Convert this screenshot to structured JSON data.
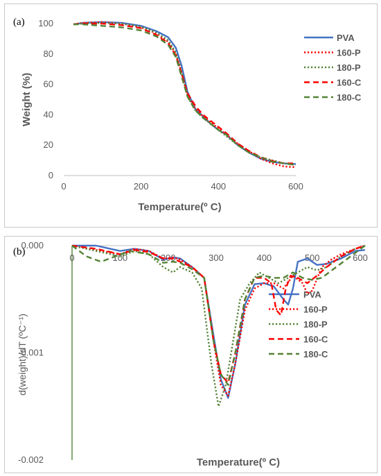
{
  "chart_data": [
    {
      "panel": "(a)",
      "type": "line",
      "xlabel": "Temperature(º C)",
      "ylabel": "Weight (%)",
      "xlim": [
        0,
        600
      ],
      "ylim": [
        0,
        100
      ],
      "xticks": [
        "0",
        "200",
        "400",
        "600"
      ],
      "yticks": [
        "0",
        "20",
        "40",
        "60",
        "80",
        "100"
      ],
      "grid": false,
      "legend_position": "right",
      "series": [
        {
          "name": "PVA",
          "color": "#4472C4",
          "dash": "solid",
          "x": [
            25,
            50,
            100,
            150,
            200,
            240,
            270,
            290,
            305,
            320,
            340,
            360,
            380,
            400,
            420,
            450,
            480,
            510,
            540,
            570,
            600
          ],
          "y": [
            99.5,
            100.5,
            101,
            100.5,
            98.5,
            95,
            91,
            84,
            72,
            55,
            44,
            39,
            34,
            30,
            27,
            20,
            15,
            11,
            9,
            8,
            7.5
          ]
        },
        {
          "name": "160-P",
          "color": "#FF0000",
          "dash": "dot",
          "x": [
            25,
            50,
            100,
            150,
            200,
            240,
            270,
            290,
            305,
            320,
            340,
            360,
            380,
            400,
            420,
            450,
            480,
            510,
            540,
            570,
            600
          ],
          "y": [
            99.5,
            100.5,
            101,
            100,
            97.5,
            93.5,
            88,
            80,
            67,
            53,
            44,
            39,
            35,
            31,
            27,
            21,
            16,
            11,
            8,
            6,
            5.5
          ]
        },
        {
          "name": "180-P",
          "color": "#548235",
          "dash": "dot",
          "x": [
            25,
            50,
            100,
            150,
            200,
            240,
            270,
            290,
            305,
            320,
            340,
            360,
            380,
            400,
            420,
            450,
            480,
            510,
            540,
            570,
            600
          ],
          "y": [
            99.5,
            100,
            100.5,
            100,
            98,
            94,
            89,
            81,
            68,
            52,
            43,
            38,
            34,
            30,
            26,
            20,
            15,
            12,
            10,
            8,
            7
          ]
        },
        {
          "name": "160-C",
          "color": "#FF0000",
          "dash": "dash",
          "x": [
            25,
            50,
            100,
            150,
            200,
            240,
            270,
            290,
            305,
            320,
            340,
            360,
            380,
            400,
            420,
            450,
            480,
            510,
            540,
            570,
            600
          ],
          "y": [
            99.5,
            100,
            100,
            99,
            97,
            92.5,
            87,
            79,
            67,
            54,
            46,
            40,
            36,
            32,
            28,
            21,
            16,
            12,
            9.5,
            8,
            8
          ]
        },
        {
          "name": "180-C",
          "color": "#548235",
          "dash": "dash",
          "x": [
            25,
            50,
            100,
            150,
            200,
            240,
            270,
            290,
            305,
            320,
            340,
            360,
            380,
            400,
            420,
            450,
            480,
            510,
            540,
            570,
            600
          ],
          "y": [
            99.5,
            99.5,
            98.5,
            97.5,
            95.5,
            91.5,
            86,
            78,
            65,
            52,
            43,
            38,
            34,
            30,
            27,
            20,
            15,
            12,
            9,
            8,
            7
          ]
        }
      ]
    },
    {
      "panel": "(b)",
      "type": "line",
      "xlabel": "Temperature(º C)",
      "ylabel": "d(weight)/dT (ºC⁻¹)",
      "xlim": [
        0,
        600
      ],
      "ylim": [
        -0.002,
        0
      ],
      "xticks": [
        "0",
        "100",
        "200",
        "300",
        "400",
        "500",
        "600"
      ],
      "yticks": [
        "0.000",
        "-0.001",
        "-0.002"
      ],
      "grid": false,
      "legend_position": "right",
      "series": [
        {
          "name": "PVA",
          "color": "#4472C4",
          "dash": "solid",
          "x": [
            0,
            50,
            100,
            130,
            160,
            190,
            210,
            225,
            250,
            275,
            295,
            310,
            325,
            340,
            360,
            380,
            400,
            420,
            440,
            450,
            460,
            470,
            490,
            510,
            530,
            560,
            590,
            610
          ],
          "y": [
            0,
            0,
            -5e-05,
            -3e-05,
            -5e-05,
            -0.00013,
            -0.00011,
            -0.00012,
            -0.0002,
            -0.0003,
            -0.00085,
            -0.00125,
            -0.00142,
            -0.0011,
            -0.00055,
            -0.00036,
            -0.00035,
            -0.00038,
            -0.0005,
            -0.00055,
            -0.0004,
            -0.00015,
            -0.00012,
            -0.00018,
            -0.00017,
            -0.00012,
            -5e-05,
            -4e-05
          ]
        },
        {
          "name": "160-P",
          "color": "#FF0000",
          "dash": "dot",
          "x": [
            0,
            50,
            100,
            130,
            160,
            190,
            210,
            225,
            250,
            275,
            295,
            310,
            325,
            340,
            360,
            380,
            400,
            420,
            440,
            460,
            480,
            490,
            500,
            520,
            540,
            560,
            590,
            610
          ],
          "y": [
            0,
            -4e-05,
            -8e-05,
            -3e-05,
            -5e-05,
            -0.00012,
            -0.00011,
            -0.00013,
            -0.0002,
            -0.0003,
            -0.0009,
            -0.0013,
            -0.0014,
            -0.0011,
            -0.0006,
            -0.0004,
            -0.00035,
            -0.00035,
            -0.0004,
            -0.00028,
            -0.00035,
            -0.00045,
            -0.00042,
            -0.0002,
            -0.00013,
            -8e-05,
            -3e-05,
            0
          ]
        },
        {
          "name": "180-P",
          "color": "#548235",
          "dash": "dot",
          "x": [
            0,
            50,
            100,
            130,
            160,
            190,
            210,
            225,
            250,
            270,
            290,
            305,
            320,
            335,
            350,
            370,
            390,
            410,
            430,
            450,
            470,
            490,
            510,
            530,
            560,
            590,
            610
          ],
          "y": [
            0,
            -5e-05,
            -0.0001,
            -5e-05,
            -8e-05,
            -0.0002,
            -0.00025,
            -0.0002,
            -0.00025,
            -0.0004,
            -0.0011,
            -0.0015,
            -0.0013,
            -0.0009,
            -0.0005,
            -0.00035,
            -0.00025,
            -0.0003,
            -0.00035,
            -0.0003,
            -0.00025,
            -0.0002,
            -0.00023,
            -0.0002,
            -0.0001,
            -3e-05,
            0
          ]
        },
        {
          "name": "160-C",
          "color": "#FF0000",
          "dash": "dash",
          "x": [
            0,
            50,
            100,
            130,
            160,
            190,
            210,
            225,
            250,
            275,
            295,
            310,
            325,
            340,
            360,
            380,
            400,
            415,
            425,
            435,
            445,
            455,
            470,
            490,
            510,
            530,
            560,
            590,
            610
          ],
          "y": [
            0,
            -3e-05,
            -8e-05,
            -4e-05,
            -6e-05,
            -0.00012,
            -0.00012,
            -0.00015,
            -0.0002,
            -0.0003,
            -0.0009,
            -0.0012,
            -0.00128,
            -0.001,
            -0.0005,
            -0.0003,
            -0.0003,
            -0.00035,
            -0.0006,
            -0.00065,
            -0.0004,
            -0.00028,
            -0.0003,
            -0.00035,
            -0.00028,
            -0.0002,
            -0.0001,
            -3e-05,
            0
          ]
        },
        {
          "name": "180-C",
          "color": "#548235",
          "dash": "dash",
          "x": [
            0,
            30,
            60,
            90,
            120,
            160,
            190,
            210,
            225,
            250,
            275,
            295,
            310,
            325,
            340,
            360,
            380,
            400,
            420,
            440,
            460,
            480,
            500,
            520,
            550,
            580,
            610
          ],
          "y": [
            0,
            -0.0001,
            -0.00015,
            -0.0001,
            -5e-05,
            -8e-05,
            -0.00016,
            -0.00015,
            -0.00016,
            -0.00022,
            -0.0003,
            -0.0009,
            -0.0012,
            -0.0013,
            -0.001,
            -0.0005,
            -0.0003,
            -0.00028,
            -0.0003,
            -0.0003,
            -0.00025,
            -0.0003,
            -0.00032,
            -0.0003,
            -0.0002,
            -0.0001,
            0
          ]
        }
      ]
    }
  ]
}
